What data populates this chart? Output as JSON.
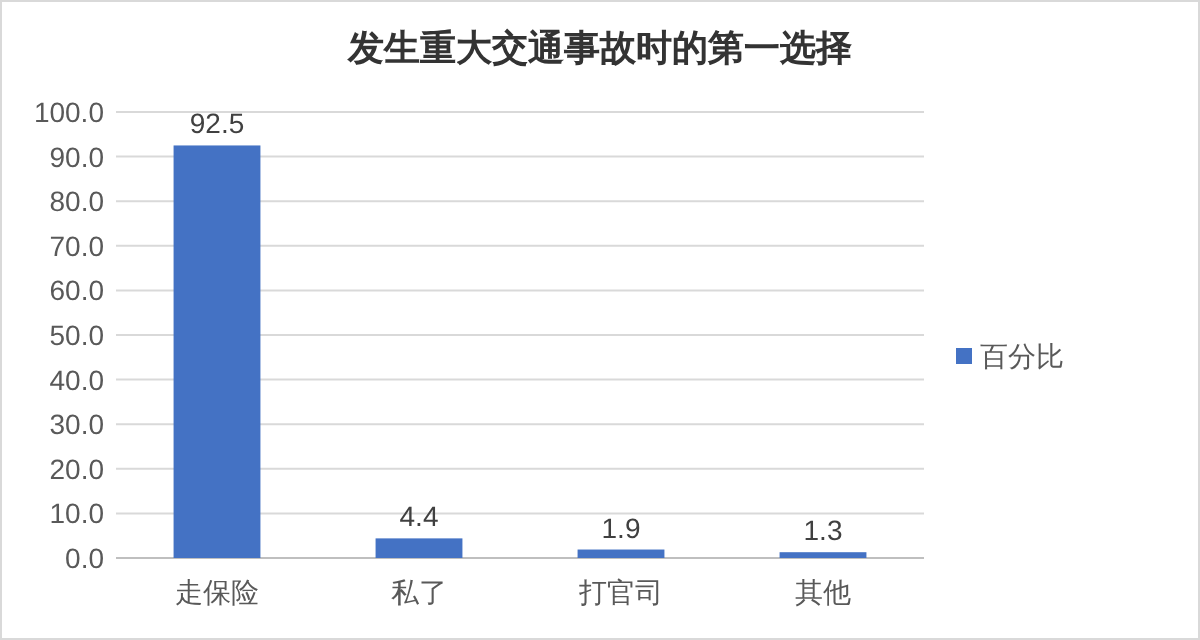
{
  "chart_data": {
    "type": "bar",
    "title": "发生重大交通事故时的第一选择",
    "categories": [
      "走保险",
      "私了",
      "打官司",
      "其他"
    ],
    "series": [
      {
        "name": "百分比",
        "color": "#4472c4",
        "values": [
          92.5,
          4.4,
          1.9,
          1.3
        ]
      }
    ],
    "ylim": [
      0,
      100
    ],
    "yticks": [
      {
        "value": 0,
        "label": "0.0"
      },
      {
        "value": 10,
        "label": "10.0"
      },
      {
        "value": 20,
        "label": "20.0"
      },
      {
        "value": 30,
        "label": "30.0"
      },
      {
        "value": 40,
        "label": "40.0"
      },
      {
        "value": 50,
        "label": "50.0"
      },
      {
        "value": 60,
        "label": "60.0"
      },
      {
        "value": 70,
        "label": "70.0"
      },
      {
        "value": 80,
        "label": "80.0"
      },
      {
        "value": 90,
        "label": "90.0"
      },
      {
        "value": 100,
        "label": "100.0"
      }
    ],
    "grid": "y",
    "legend": "right",
    "data_labels": true
  }
}
